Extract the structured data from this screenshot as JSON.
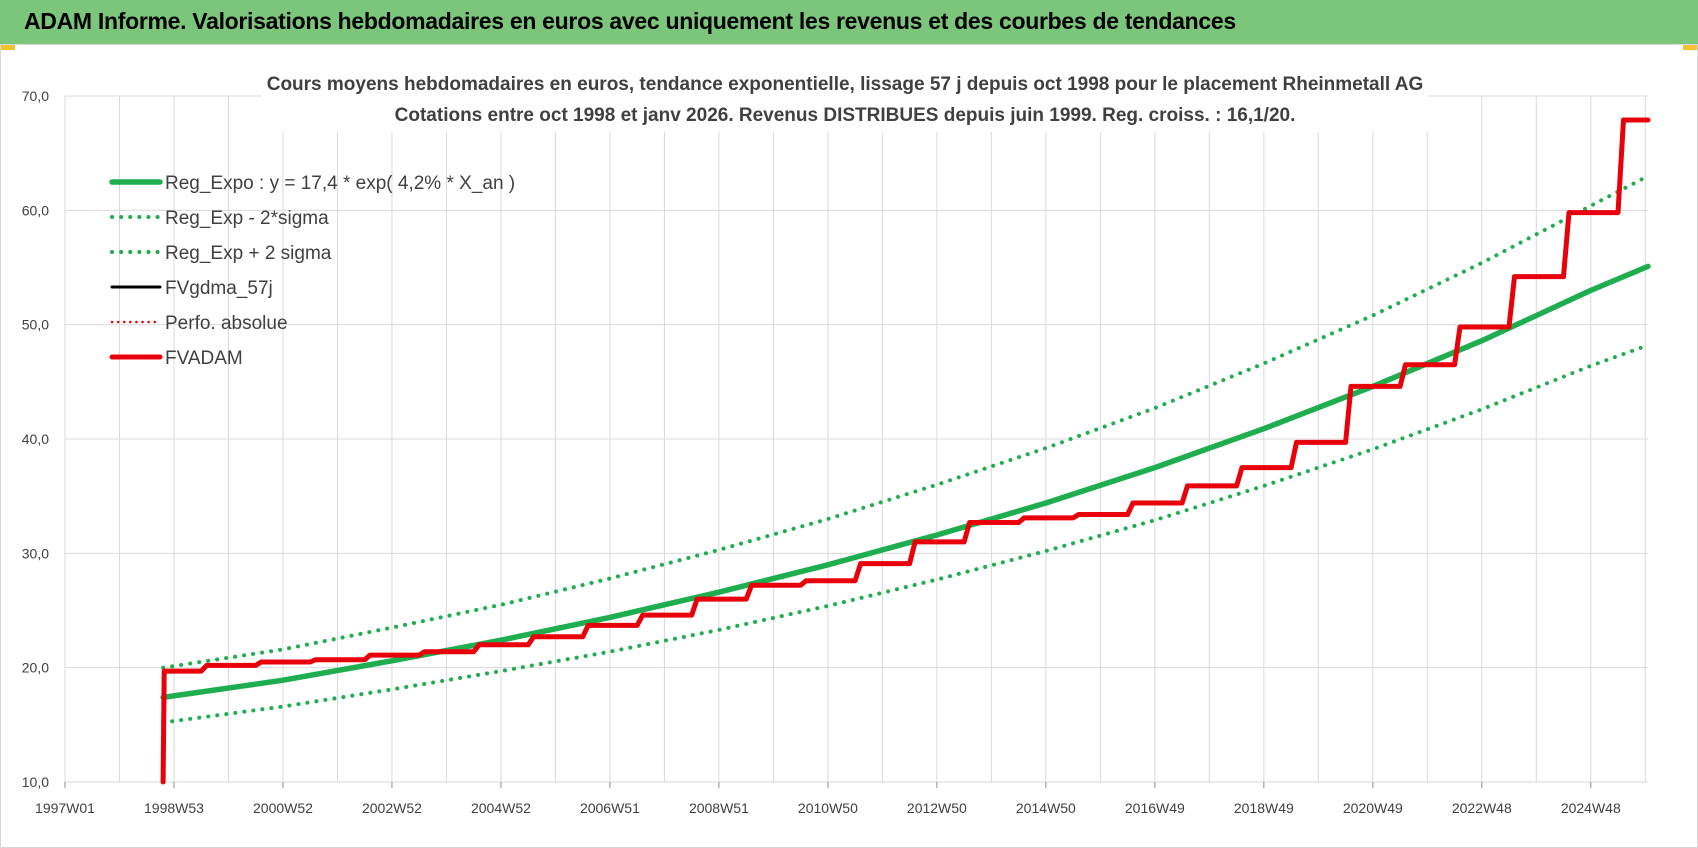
{
  "banner": {
    "title": "ADAM Informe. Valorisations hebdomadaires en euros avec uniquement les revenus et des courbes de tendances"
  },
  "colors": {
    "banner_bg": "#7bc67a",
    "green": "#1fae4f",
    "black": "#000000",
    "red": "#e8000b",
    "grid": "#d9d9d9"
  },
  "chart_data": {
    "type": "line",
    "title_line1": "Cours moyens hebdomadaires en euros, tendance exponentielle, lissage 57 j depuis oct 1998 pour le placement Rheinmetall AG",
    "title_line2": "Cotations entre oct 1998 et janv 2026. Revenus DISTRIBUES depuis juin 1999. Reg. croiss. : 16,1/20.",
    "x_tick_labels": [
      "1997W01",
      "1998W53",
      "2000W52",
      "2002W52",
      "2004W52",
      "2006W51",
      "2008W51",
      "2010W50",
      "2012W50",
      "2014W50",
      "2016W49",
      "2018W49",
      "2020W49",
      "2022W48",
      "2024W48"
    ],
    "x_tick_years": [
      1997.0,
      1999.0,
      2001.0,
      2003.0,
      2005.0,
      2007.0,
      2009.0,
      2011.0,
      2013.0,
      2015.0,
      2017.0,
      2019.0,
      2021.0,
      2023.0,
      2025.0
    ],
    "xlim": [
      1997.0,
      2026.05
    ],
    "ylim": [
      10,
      70
    ],
    "y_ticks": [
      10,
      20,
      30,
      40,
      50,
      60,
      70
    ],
    "y_tick_labels": [
      "10,0",
      "20,0",
      "30,0",
      "40,0",
      "50,0",
      "60,0",
      "70,0"
    ],
    "grid": true,
    "legend_position": "top-left",
    "series": [
      {
        "name": "Reg_Expo : y = 17,4 * exp( 4,2% *  X_an )",
        "style": "solid-green",
        "x": [
          1998.8,
          2001,
          2003,
          2005,
          2007,
          2009,
          2011,
          2013,
          2015,
          2017,
          2019,
          2021,
          2023,
          2025,
          2026.05
        ],
        "y": [
          17.4,
          18.9,
          20.6,
          22.4,
          24.4,
          26.6,
          29.0,
          31.6,
          34.4,
          37.5,
          40.9,
          44.6,
          48.6,
          53.0,
          55.1
        ]
      },
      {
        "name": "Reg_Exp - 2*sigma",
        "style": "dotted-green",
        "x": [
          1998.8,
          2001,
          2003,
          2005,
          2007,
          2009,
          2011,
          2013,
          2015,
          2017,
          2019,
          2021,
          2023,
          2025,
          2026.05
        ],
        "y": [
          15.2,
          16.6,
          18.1,
          19.7,
          21.4,
          23.3,
          25.4,
          27.7,
          30.2,
          32.9,
          35.9,
          39.1,
          42.6,
          46.4,
          48.2
        ]
      },
      {
        "name": "Reg_Exp + 2 sigma",
        "style": "dotted-green",
        "x": [
          1998.8,
          2001,
          2003,
          2005,
          2007,
          2009,
          2011,
          2013,
          2015,
          2017,
          2019,
          2021,
          2023,
          2025,
          2026.05
        ],
        "y": [
          20.0,
          21.6,
          23.5,
          25.5,
          27.8,
          30.3,
          33.0,
          36.0,
          39.2,
          42.7,
          46.6,
          50.8,
          55.4,
          60.4,
          63.0
        ]
      },
      {
        "name": "FVgdma_57j",
        "style": "solid-black",
        "x": [
          1998.8,
          1998.82,
          1999.5,
          1999.6,
          2000.5,
          2000.6,
          2001.5,
          2001.6,
          2002.5,
          2002.6,
          2003.5,
          2003.6,
          2004.5,
          2004.6,
          2005.5,
          2005.6,
          2006.5,
          2006.6,
          2007.5,
          2007.6,
          2008.5,
          2008.6,
          2009.5,
          2009.6,
          2010.5,
          2010.6,
          2011.5,
          2011.6,
          2012.5,
          2012.6,
          2013.5,
          2013.6,
          2014.5,
          2014.6,
          2015.5,
          2015.6,
          2016.5,
          2016.6,
          2017.5,
          2017.6,
          2018.5,
          2018.6,
          2019.5,
          2019.6,
          2020.5,
          2020.6,
          2021.5,
          2021.6,
          2022.5,
          2022.6,
          2023.5,
          2023.6,
          2024.5,
          2024.6,
          2025.5,
          2025.6,
          2026.05
        ],
        "y": [
          10.0,
          19.7,
          19.7,
          20.2,
          20.2,
          20.5,
          20.5,
          20.7,
          20.7,
          21.1,
          21.1,
          21.4,
          21.4,
          22.0,
          22.0,
          22.7,
          22.7,
          23.7,
          23.7,
          24.6,
          24.6,
          26.0,
          26.0,
          27.2,
          27.2,
          27.6,
          27.6,
          29.1,
          29.1,
          31.0,
          31.0,
          32.7,
          32.7,
          33.1,
          33.1,
          33.4,
          33.4,
          34.4,
          34.4,
          35.9,
          35.9,
          37.5,
          37.5,
          39.7,
          39.7,
          44.6,
          44.6,
          46.5,
          46.5,
          49.8,
          49.8,
          54.2,
          54.2,
          59.8,
          59.8,
          67.9,
          67.9
        ]
      },
      {
        "name": "Perfo. absolue",
        "style": "dotted-red",
        "x": [],
        "y": []
      },
      {
        "name": "FVADAM",
        "style": "solid-red",
        "x": [
          1998.8,
          1998.82,
          1999.5,
          1999.6,
          2000.5,
          2000.6,
          2001.5,
          2001.6,
          2002.5,
          2002.6,
          2003.5,
          2003.6,
          2004.5,
          2004.6,
          2005.5,
          2005.6,
          2006.5,
          2006.6,
          2007.5,
          2007.6,
          2008.5,
          2008.6,
          2009.5,
          2009.6,
          2010.5,
          2010.6,
          2011.5,
          2011.6,
          2012.5,
          2012.6,
          2013.5,
          2013.6,
          2014.5,
          2014.6,
          2015.5,
          2015.6,
          2016.5,
          2016.6,
          2017.5,
          2017.6,
          2018.5,
          2018.6,
          2019.5,
          2019.6,
          2020.5,
          2020.6,
          2021.5,
          2021.6,
          2022.5,
          2022.6,
          2023.5,
          2023.6,
          2024.5,
          2024.6,
          2025.5,
          2025.6,
          2026.05
        ],
        "y": [
          10.0,
          19.7,
          19.7,
          20.2,
          20.2,
          20.5,
          20.5,
          20.7,
          20.7,
          21.1,
          21.1,
          21.4,
          21.4,
          22.0,
          22.0,
          22.7,
          22.7,
          23.7,
          23.7,
          24.6,
          24.6,
          26.0,
          26.0,
          27.2,
          27.2,
          27.6,
          27.6,
          29.1,
          29.1,
          31.0,
          31.0,
          32.7,
          32.7,
          33.1,
          33.1,
          33.4,
          33.4,
          34.4,
          34.4,
          35.9,
          35.9,
          37.5,
          37.5,
          39.7,
          39.7,
          44.6,
          44.6,
          46.5,
          46.5,
          49.8,
          49.8,
          54.2,
          54.2,
          59.8,
          59.8,
          67.9,
          67.9
        ]
      }
    ]
  }
}
